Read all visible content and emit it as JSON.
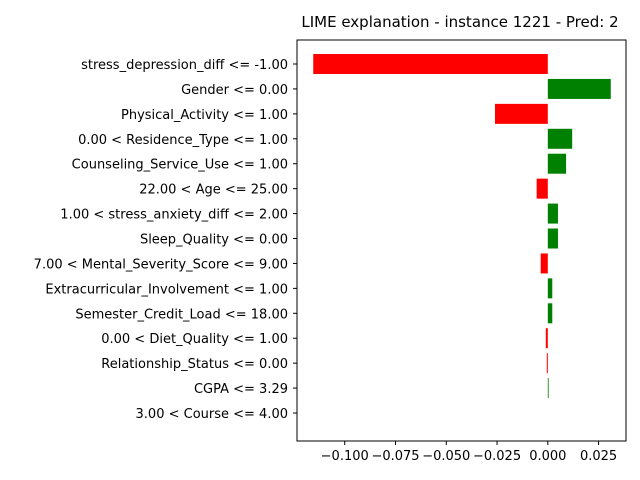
{
  "chart_data": {
    "type": "bar",
    "orientation": "horizontal",
    "title": "LIME explanation - instance 1221 - Pred: 2",
    "xlabel": "",
    "ylabel": "",
    "xlim": [
      -0.1235,
      0.0385
    ],
    "xticks": [
      -0.1,
      -0.075,
      -0.05,
      -0.025,
      0.0,
      0.025
    ],
    "xtick_labels": [
      "−0.100",
      "−0.075",
      "−0.050",
      "−0.025",
      "0.000",
      "0.025"
    ],
    "grid": false,
    "colors": {
      "positive": "#008000",
      "negative": "#ff0000"
    },
    "categories": [
      "stress_depression_diff <= -1.00",
      "Gender <= 0.00",
      "Physical_Activity <= 1.00",
      "0.00 < Residence_Type <= 1.00",
      "Counseling_Service_Use <= 1.00",
      "22.00 < Age <= 25.00",
      "1.00 < stress_anxiety_diff <= 2.00",
      "Sleep_Quality <= 0.00",
      "7.00 < Mental_Severity_Score <= 9.00",
      "Extracurricular_Involvement <= 1.00",
      "Semester_Credit_Load <= 18.00",
      "0.00 < Diet_Quality <= 1.00",
      "Relationship_Status <= 0.00",
      "CGPA <= 3.29",
      "3.00 < Course <= 4.00"
    ],
    "values": [
      -0.1155,
      0.031,
      -0.026,
      0.012,
      0.009,
      -0.0055,
      0.005,
      0.005,
      -0.0035,
      0.0022,
      0.0022,
      -0.001,
      -0.0005,
      0.0004,
      0.0
    ]
  }
}
